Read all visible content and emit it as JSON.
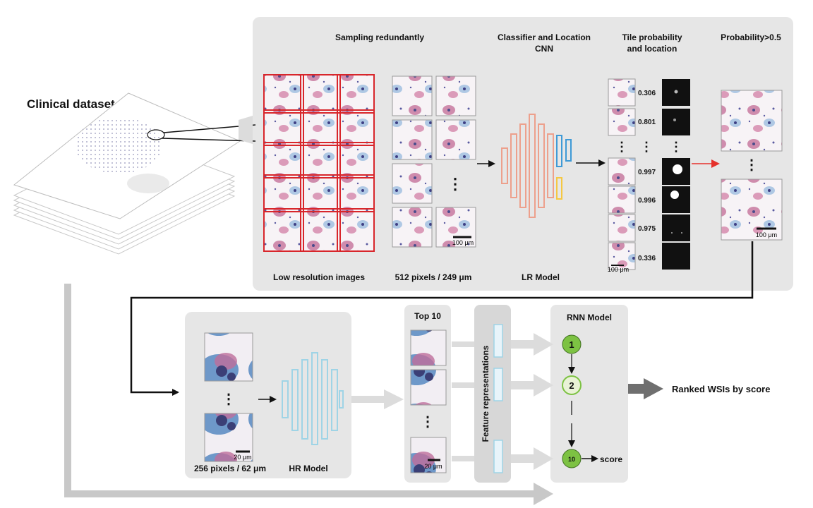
{
  "labels": {
    "clinical_dataset": "Clinical  dataset",
    "sampling_redundantly": "Sampling redundantly",
    "classifier_line1": "Classifier and Location",
    "classifier_line2": "CNN",
    "tile_prob_line1": "Tile probability",
    "tile_prob_line2": "and location",
    "probability_gt": "Probability>0.5",
    "low_res_images": "Low resolution images",
    "pixels_512": "512 pixels / 249 μm",
    "lr_model": "LR Model",
    "scale_100um": "100 μm",
    "scale_20um": "20 μm",
    "pixels_256": "256 pixels / 62 μm",
    "hr_model": "HR Model",
    "top10": "Top 10",
    "feature_representations": "Feature  representations",
    "rnn_model": "RNN Model",
    "score": "score",
    "ranked": "Ranked WSIs by score",
    "ellipsis": "⋮"
  },
  "tile_probabilities": [
    "0.306",
    "0.801",
    "0.997",
    "0.996",
    "0.975",
    "0.336"
  ],
  "rnn_nodes": [
    "1",
    "2",
    "10"
  ],
  "colors": {
    "panel": "#e6e6e6",
    "grid_red": "#d8262b",
    "lr_cnn_salmon": "#eda08c",
    "lr_cnn_blue": "#3f9ad6",
    "lr_cnn_yellow": "#f5c842",
    "hr_cnn_blue": "#9fd4e6",
    "rnn_node_green": "#7dc243",
    "arrow_red": "#e5312b"
  }
}
